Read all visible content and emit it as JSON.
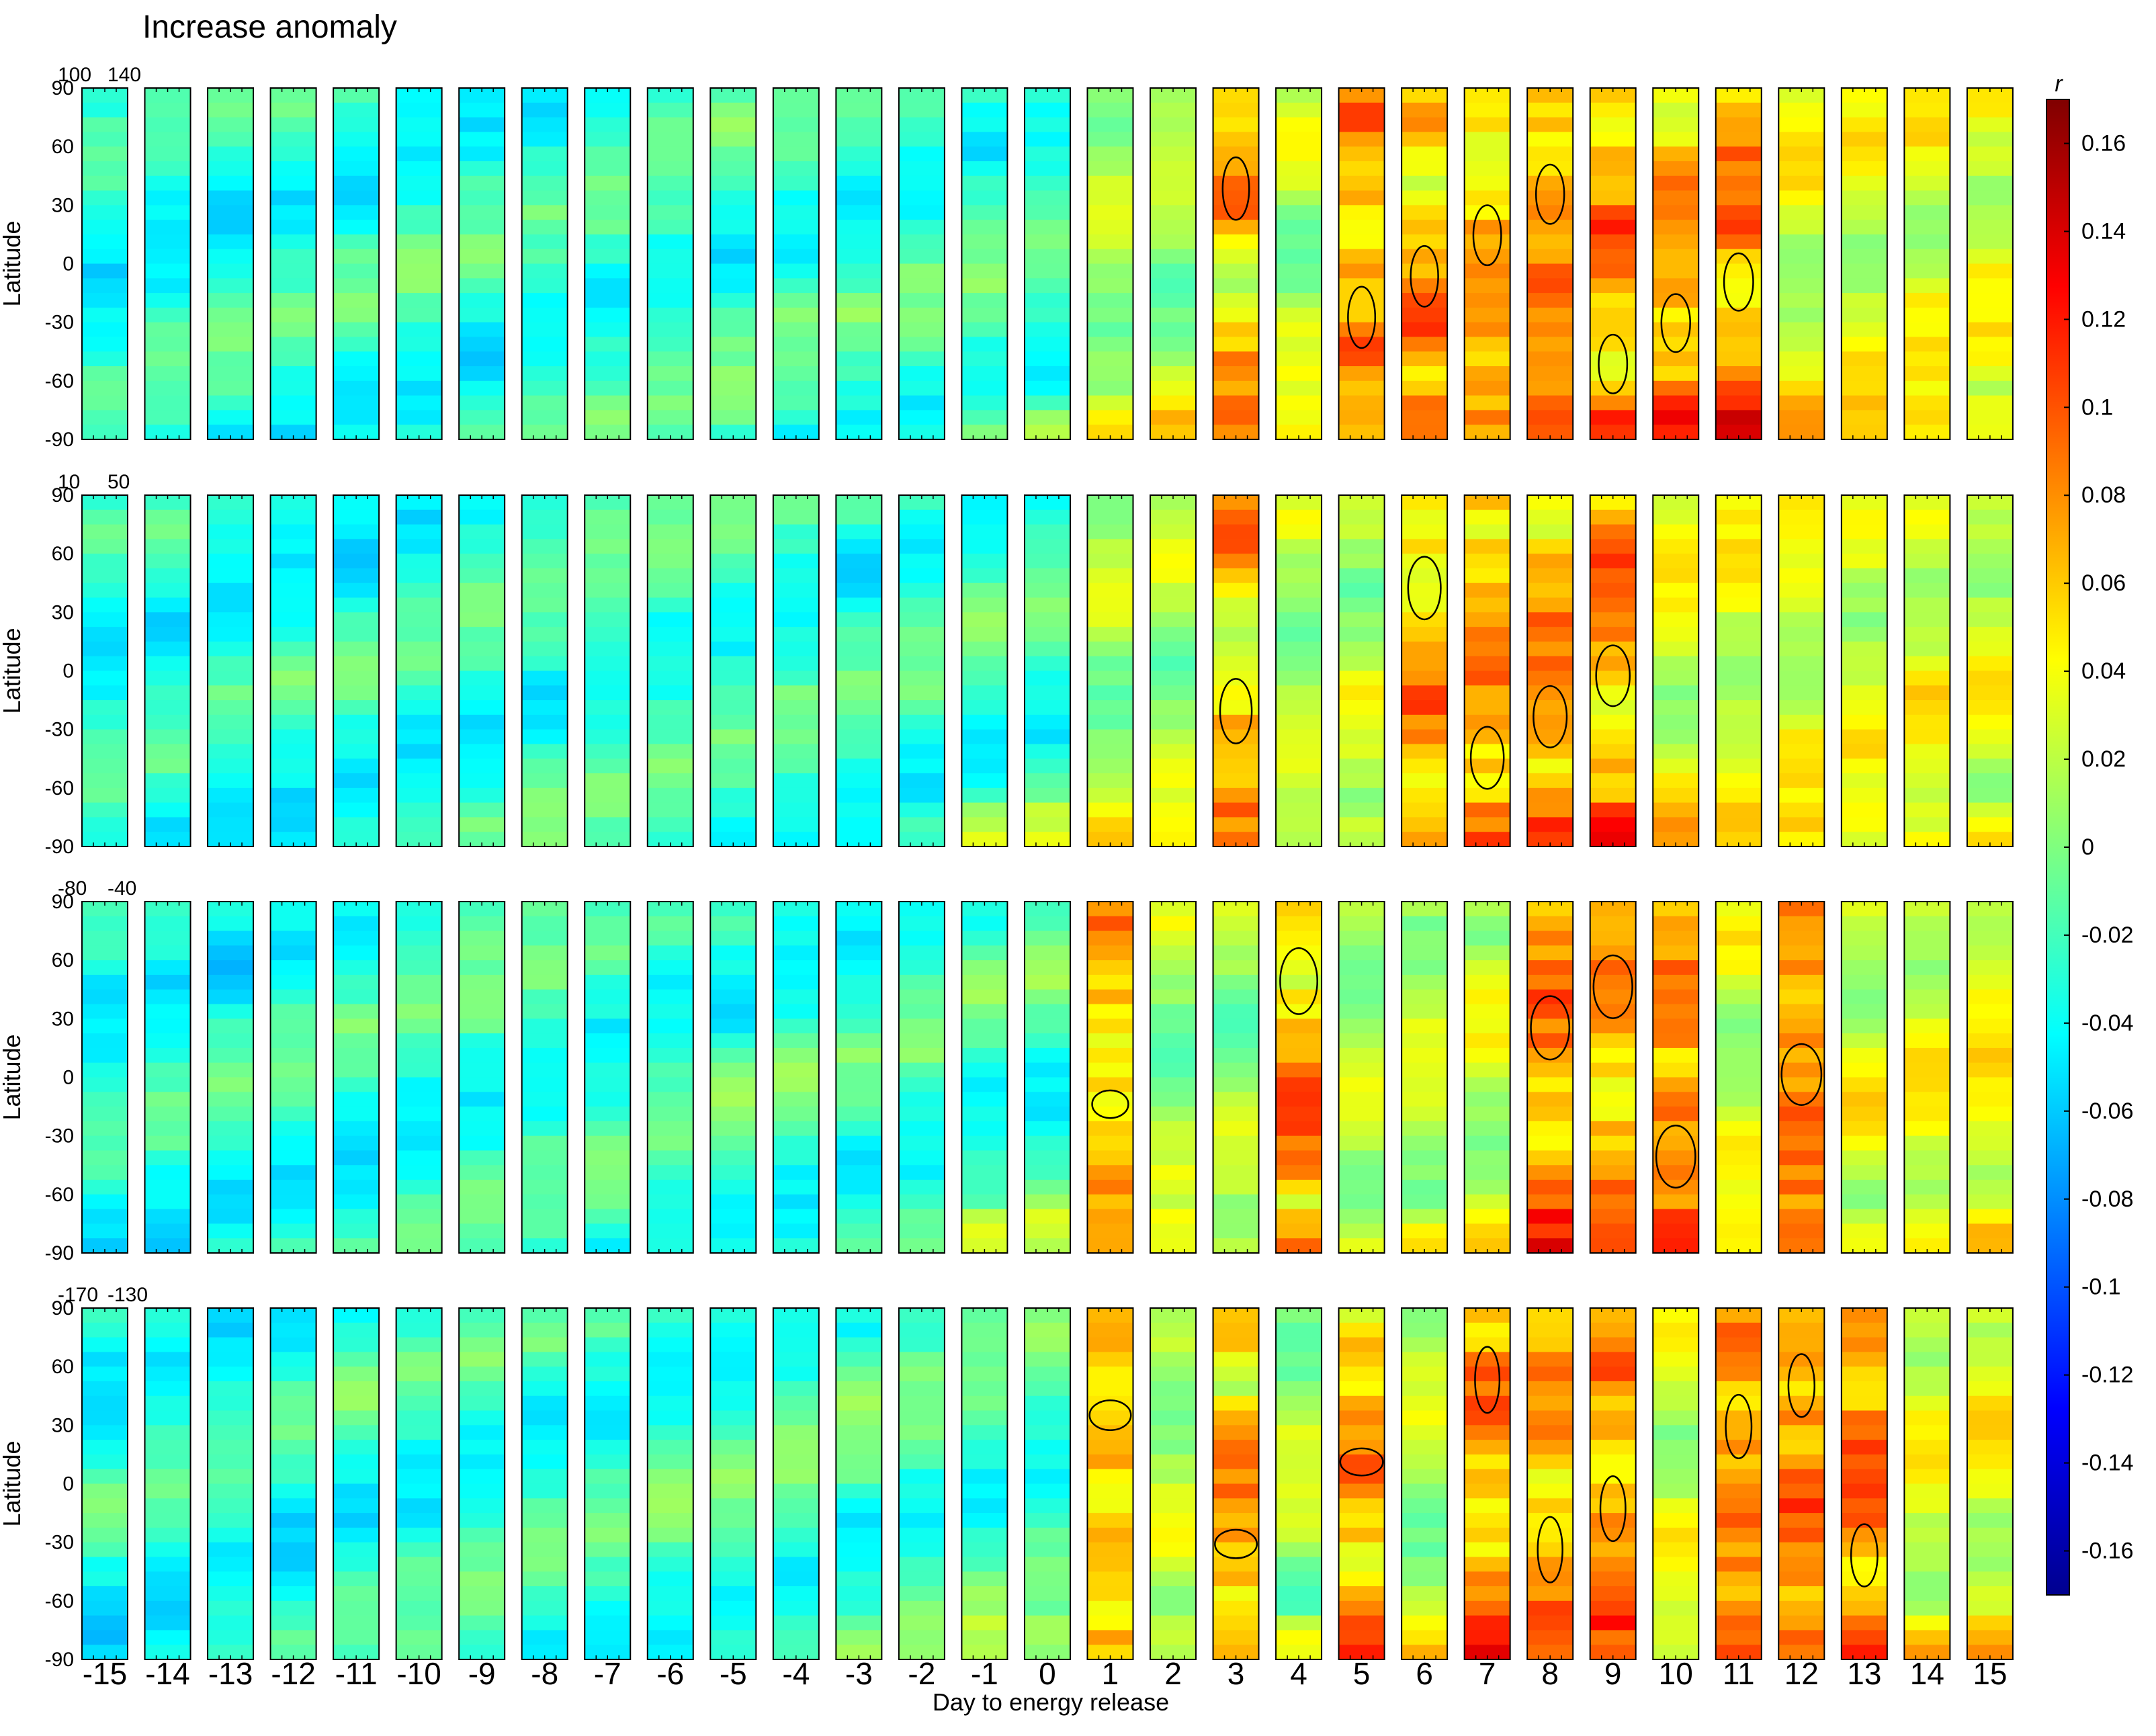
{
  "chart_data": {
    "type": "heatmap",
    "title": "Increase anomaly",
    "xlabel": "Day to energy release",
    "ylabel": "Latitude",
    "days": [
      -15,
      -14,
      -13,
      -12,
      -11,
      -10,
      -9,
      -8,
      -7,
      -6,
      -5,
      -4,
      -3,
      -2,
      -1,
      0,
      1,
      2,
      3,
      4,
      5,
      6,
      7,
      8,
      9,
      10,
      11,
      12,
      13,
      14,
      15
    ],
    "latitude_ticks": [
      90,
      60,
      30,
      0,
      -30,
      -60,
      -90
    ],
    "ylim": [
      -90,
      90
    ],
    "colorbar": {
      "label": "r",
      "range": [
        -0.17,
        0.17
      ],
      "ticks": [
        0.16,
        0.14,
        0.12,
        0.1,
        0.08,
        0.06,
        0.04,
        0.02,
        0,
        -0.02,
        -0.04,
        -0.06,
        -0.08,
        -0.1,
        -0.12,
        -0.14,
        -0.16
      ],
      "colormap": "jet"
    },
    "panels": [
      {
        "longitude_range": [
          "100",
          "140"
        ],
        "strongest_days": [
          3,
          5,
          6,
          7,
          8,
          9,
          10,
          11
        ]
      },
      {
        "longitude_range": [
          "10",
          "50"
        ],
        "strongest_days": [
          3,
          6,
          7,
          8,
          9
        ]
      },
      {
        "longitude_range": [
          "-80",
          "-40"
        ],
        "strongest_days": [
          1,
          4,
          8,
          9,
          10,
          12
        ]
      },
      {
        "longitude_range": [
          "-170",
          "-130"
        ],
        "strongest_days": [
          1,
          3,
          5,
          7,
          8,
          9,
          11,
          12,
          13
        ]
      }
    ],
    "contour_level_note": "black contours mark significant positive correlation regions"
  },
  "colors": {
    "background": "#ffffff",
    "frame": "#000000",
    "contour": "#000000"
  }
}
